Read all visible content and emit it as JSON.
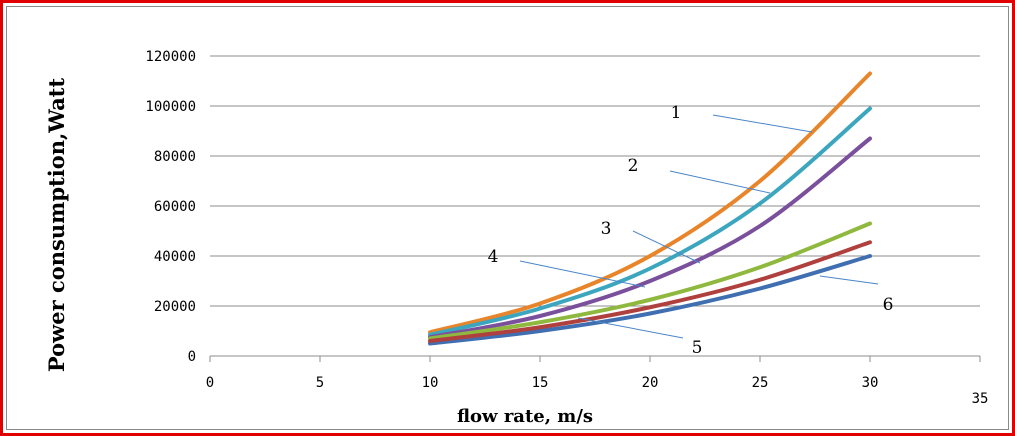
{
  "chart_data": {
    "type": "line",
    "xlabel": "flow rate, m/s",
    "ylabel": "Power consumption,Watt",
    "xlim": [
      0,
      35
    ],
    "ylim": [
      0,
      120000
    ],
    "x_ticks": [
      "0",
      "5",
      "10",
      "15",
      "20",
      "25",
      "30",
      "35"
    ],
    "y_ticks": [
      "0",
      "20000",
      "40000",
      "60000",
      "80000",
      "100000",
      "120000"
    ],
    "grid": "horizontal",
    "x": [
      10,
      15,
      20,
      25,
      30
    ],
    "series": [
      {
        "name": "1",
        "color": "#e8852a",
        "values": [
          9500,
          21000,
          40000,
          70000,
          113000
        ]
      },
      {
        "name": "2",
        "color": "#3da6bf",
        "values": [
          8500,
          19000,
          35000,
          61000,
          99000
        ]
      },
      {
        "name": "3",
        "color": "#7a4f9c",
        "values": [
          7500,
          16000,
          30000,
          52000,
          87000
        ]
      },
      {
        "name": "4",
        "color": "#8fb93e",
        "values": [
          7000,
          13500,
          22500,
          35500,
          53000
        ]
      },
      {
        "name": "5",
        "color": "#3f6fb0",
        "values": [
          5000,
          10000,
          17000,
          27000,
          40000
        ]
      },
      {
        "name": "6",
        "color": "#b0403e",
        "values": [
          6000,
          11500,
          19500,
          30500,
          45500
        ]
      }
    ]
  }
}
